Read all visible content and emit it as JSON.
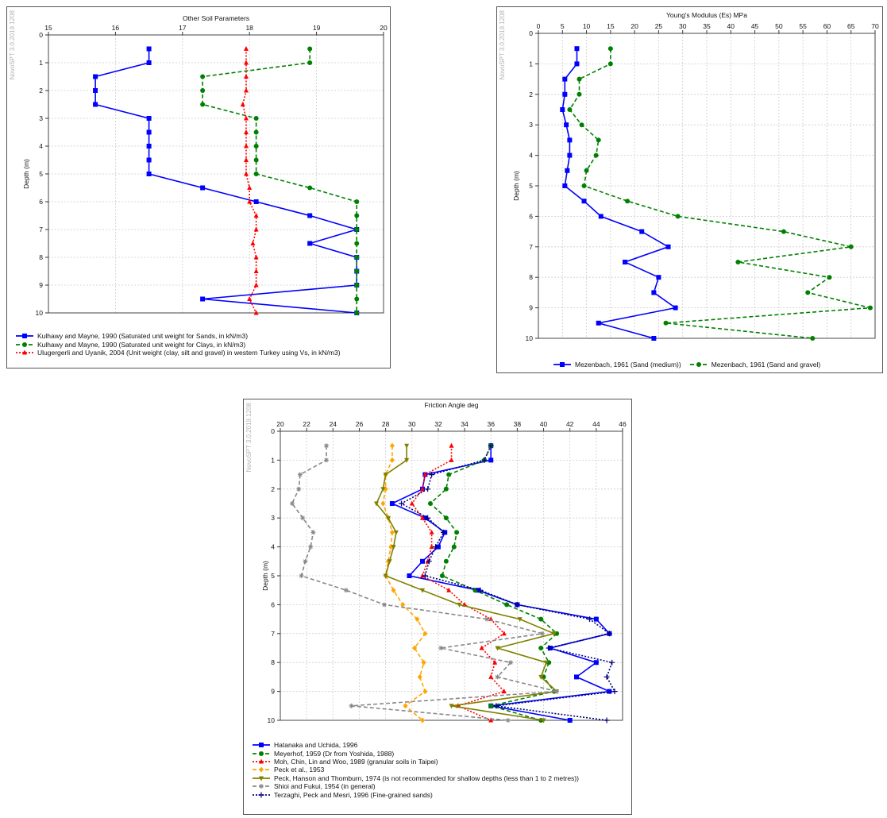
{
  "chart_data": [
    {
      "type": "line",
      "title": "Other Soil Parameters",
      "watermark": "NovoSPT 3.0.2019.1208",
      "xlabel": "",
      "ylabel": "Depth (m)",
      "xlim": [
        15,
        20
      ],
      "ylim": [
        0,
        10
      ],
      "x_axis_position": "top",
      "y_inverted": true,
      "grid": true,
      "xticks": [
        "15",
        "16",
        "17",
        "18",
        "19",
        "20"
      ],
      "yticks": [
        "0",
        "1",
        "2",
        "3",
        "4",
        "5",
        "6",
        "7",
        "8",
        "9",
        "10"
      ],
      "legend_position": "bottom",
      "series": [
        {
          "name": "Kulhawy and Mayne, 1990 (Saturated unit weight for Sands, in kN/m3)",
          "color": "#0000ff",
          "dash": "solid",
          "marker": "square",
          "x": [
            16.5,
            16.5,
            15.7,
            15.7,
            15.7,
            16.5,
            16.5,
            16.5,
            16.5,
            16.5,
            17.3,
            18.1,
            18.9,
            19.6,
            18.9,
            19.6,
            19.6,
            19.6,
            17.3,
            19.6
          ],
          "y": [
            0.5,
            1.0,
            1.5,
            2.0,
            2.5,
            3.0,
            3.5,
            4.0,
            4.5,
            5.0,
            5.5,
            6.0,
            6.5,
            7.0,
            7.5,
            8.0,
            8.5,
            9.0,
            9.5,
            10.0
          ]
        },
        {
          "name": "Kulhawy and Mayne, 1990 (Saturated unit weight for Clays, in kN/m3)",
          "color": "#008000",
          "dash": "dashed",
          "marker": "circle",
          "x": [
            18.9,
            18.9,
            17.3,
            17.3,
            17.3,
            18.1,
            18.1,
            18.1,
            18.1,
            18.1,
            18.9,
            19.6,
            19.6,
            19.6,
            19.6,
            19.6,
            19.6,
            19.6,
            19.6,
            19.6
          ],
          "y": [
            0.5,
            1.0,
            1.5,
            2.0,
            2.5,
            3.0,
            3.5,
            4.0,
            4.5,
            5.0,
            5.5,
            6.0,
            6.5,
            7.0,
            7.5,
            8.0,
            8.5,
            9.0,
            9.5,
            10.0
          ]
        },
        {
          "name": "Ulugergerli and Uyanik, 2004 (Unit weight (clay, silt and gravel) in western Turkey using Vs, in kN/m3)",
          "color": "#ff0000",
          "dash": "dotted",
          "marker": "triangle",
          "x": [
            17.95,
            17.95,
            17.95,
            17.95,
            17.9,
            17.95,
            17.95,
            17.95,
            17.95,
            17.95,
            18.0,
            18.0,
            18.1,
            18.1,
            18.05,
            18.1,
            18.1,
            18.1,
            18.0,
            18.1
          ],
          "y": [
            0.5,
            1.0,
            1.5,
            2.0,
            2.5,
            3.0,
            3.5,
            4.0,
            4.5,
            5.0,
            5.5,
            6.0,
            6.5,
            7.0,
            7.5,
            8.0,
            8.5,
            9.0,
            9.5,
            10.0
          ]
        }
      ]
    },
    {
      "type": "line",
      "title": "Young's Modulus (Es) MPa",
      "watermark": "NovoSPT 3.0.2019.1208",
      "xlabel": "",
      "ylabel": "Depth (m)",
      "xlim": [
        0,
        70
      ],
      "ylim": [
        0,
        10
      ],
      "x_axis_position": "top",
      "y_inverted": true,
      "grid": true,
      "xticks": [
        "0",
        "5",
        "10",
        "15",
        "20",
        "25",
        "30",
        "35",
        "40",
        "45",
        "50",
        "55",
        "60",
        "65",
        "70"
      ],
      "yticks": [
        "0",
        "1",
        "2",
        "3",
        "4",
        "5",
        "6",
        "7",
        "8",
        "9",
        "10"
      ],
      "legend_position": "bottom",
      "series": [
        {
          "name": "Mezenbach, 1961 (Sand (medium))",
          "color": "#0000ff",
          "dash": "solid",
          "marker": "square",
          "x": [
            8,
            8,
            5.5,
            5.5,
            5,
            5.8,
            6.5,
            6.5,
            6,
            5.5,
            9.5,
            13,
            21.5,
            27,
            18,
            25,
            24,
            28.5,
            12.5,
            24
          ],
          "y": [
            0.5,
            1.0,
            1.5,
            2.0,
            2.5,
            3.0,
            3.5,
            4.0,
            4.5,
            5.0,
            5.5,
            6.0,
            6.5,
            7.0,
            7.5,
            8.0,
            8.5,
            9.0,
            9.5,
            10.0
          ]
        },
        {
          "name": "Mezenbach, 1961 (Sand and gravel)",
          "color": "#008000",
          "dash": "dashed",
          "marker": "circle",
          "x": [
            15,
            15,
            8.5,
            8.5,
            6.5,
            9,
            12.5,
            12,
            10,
            9.5,
            18.5,
            29,
            51,
            65,
            41.5,
            60.5,
            56,
            69,
            26.5,
            57
          ],
          "y": [
            0.5,
            1.0,
            1.5,
            2.0,
            2.5,
            3.0,
            3.5,
            4.0,
            4.5,
            5.0,
            5.5,
            6.0,
            6.5,
            7.0,
            7.5,
            8.0,
            8.5,
            9.0,
            9.5,
            10.0
          ]
        }
      ]
    },
    {
      "type": "line",
      "title": "Friction Angle deg",
      "watermark": "NovoSPT 3.0.2019.1208",
      "xlabel": "",
      "ylabel": "Depth (m)",
      "xlim": [
        20,
        46
      ],
      "ylim": [
        0,
        10
      ],
      "x_axis_position": "top",
      "y_inverted": true,
      "grid": true,
      "xticks": [
        "20",
        "22",
        "24",
        "26",
        "28",
        "30",
        "32",
        "34",
        "36",
        "38",
        "40",
        "42",
        "44",
        "46"
      ],
      "yticks": [
        "0",
        "1",
        "2",
        "3",
        "4",
        "5",
        "6",
        "7",
        "8",
        "9",
        "10"
      ],
      "legend_position": "bottom",
      "series": [
        {
          "name": "Hatanaka and Uchida, 1996",
          "color": "#0000ff",
          "dash": "solid",
          "marker": "square",
          "x": [
            36,
            36,
            31,
            30.8,
            28.5,
            31,
            32.5,
            32,
            30.8,
            29.8,
            35,
            38,
            44,
            45,
            40.5,
            44,
            42.5,
            45,
            36,
            42
          ],
          "y": [
            0.5,
            1.0,
            1.5,
            2.0,
            2.5,
            3.0,
            3.5,
            4.0,
            4.5,
            5.0,
            5.5,
            6.0,
            6.5,
            7.0,
            7.5,
            8.0,
            8.5,
            9.0,
            9.5,
            10.0
          ]
        },
        {
          "name": "Meyerhof, 1959 (Dr from Yoshida, 1988)",
          "color": "#008000",
          "dash": "dashed",
          "marker": "circle",
          "x": [
            36,
            35.5,
            32.8,
            32.6,
            31.4,
            32.6,
            33.4,
            33.2,
            32.6,
            32.3,
            34.8,
            37.2,
            39.8,
            41,
            39.8,
            40.4,
            40,
            40.8,
            36,
            39.8
          ],
          "y": [
            0.5,
            1.0,
            1.5,
            2.0,
            2.5,
            3.0,
            3.5,
            4.0,
            4.5,
            5.0,
            5.5,
            6.0,
            6.5,
            7.0,
            7.5,
            8.0,
            8.5,
            9.0,
            9.5,
            10.0
          ]
        },
        {
          "name": "Moh, Chin, Lin and Woo, 1989 (granular soils in Taipei)",
          "color": "#ff0000",
          "dash": "dotted",
          "marker": "triangle",
          "x": [
            33,
            33,
            31,
            30.8,
            30,
            30.8,
            31.5,
            31.5,
            31.2,
            30.8,
            32.8,
            34,
            36,
            37,
            35.3,
            36.3,
            36,
            37,
            33.5,
            36
          ],
          "y": [
            0.5,
            1.0,
            1.5,
            2.0,
            2.5,
            3.0,
            3.5,
            4.0,
            4.5,
            5.0,
            5.5,
            6.0,
            6.5,
            7.0,
            7.5,
            8.0,
            8.5,
            9.0,
            9.5,
            10.0
          ]
        },
        {
          "name": "Peck et al., 1953",
          "color": "#ffa500",
          "dash": "dashed",
          "marker": "diamond",
          "x": [
            28.5,
            28.5,
            28,
            28,
            27.8,
            28.2,
            28.5,
            28.4,
            28.2,
            28,
            28.6,
            29.3,
            30.4,
            31,
            30.2,
            30.9,
            30.6,
            31,
            29.5,
            30.8
          ],
          "y": [
            0.5,
            1.0,
            1.5,
            2.0,
            2.5,
            3.0,
            3.5,
            4.0,
            4.5,
            5.0,
            5.5,
            6.0,
            6.5,
            7.0,
            7.5,
            8.0,
            8.5,
            9.0,
            9.5,
            10.0
          ]
        },
        {
          "name": "Peck, Hanson and Thomburn, 1974 (is not recommended for shallow depths (less than 1 to 2 metres))",
          "color": "#808000",
          "dash": "solid",
          "marker": "tri-down",
          "x": [
            29.6,
            29.6,
            28,
            27.8,
            27.3,
            28.2,
            28.8,
            28.6,
            28.3,
            28,
            30.8,
            33.6,
            38.2,
            40.8,
            36.5,
            40.2,
            39.8,
            41,
            33,
            40
          ],
          "y": [
            0.5,
            1.0,
            1.5,
            2.0,
            2.5,
            3.0,
            3.5,
            4.0,
            4.5,
            5.0,
            5.5,
            6.0,
            6.5,
            7.0,
            7.5,
            8.0,
            8.5,
            9.0,
            9.5,
            10.0
          ]
        },
        {
          "name": "Shioi and Fukui, 1954 (in general)",
          "color": "#888888",
          "dash": "dashed",
          "marker": "star",
          "x": [
            23.5,
            23.5,
            21.5,
            21.4,
            20.9,
            21.7,
            22.5,
            22.3,
            21.9,
            21.6,
            25,
            27.9,
            35.7,
            39.9,
            32.2,
            37.5,
            36.5,
            41,
            25.4,
            37.3
          ],
          "y": [
            0.5,
            1.0,
            1.5,
            2.0,
            2.5,
            3.0,
            3.5,
            4.0,
            4.5,
            5.0,
            5.5,
            6.0,
            6.5,
            7.0,
            7.5,
            8.0,
            8.5,
            9.0,
            9.5,
            10.0
          ]
        },
        {
          "name": "Terzaghi, Peck and Mesri, 1996 (Fine-grained sands)",
          "color": "#000080",
          "dash": "dotted",
          "marker": "plus",
          "x": [
            36,
            35.5,
            31.5,
            31.2,
            29.2,
            31.2,
            32.4,
            31.8,
            31.3,
            31,
            35.2,
            38,
            43.5,
            45,
            40.4,
            45.2,
            44.8,
            45.4,
            36.4,
            44.8
          ],
          "y": [
            0.5,
            1.0,
            1.5,
            2.0,
            2.5,
            3.0,
            3.5,
            4.0,
            4.5,
            5.0,
            5.5,
            6.0,
            6.5,
            7.0,
            7.5,
            8.0,
            8.5,
            9.0,
            9.5,
            10.0
          ]
        }
      ]
    }
  ]
}
